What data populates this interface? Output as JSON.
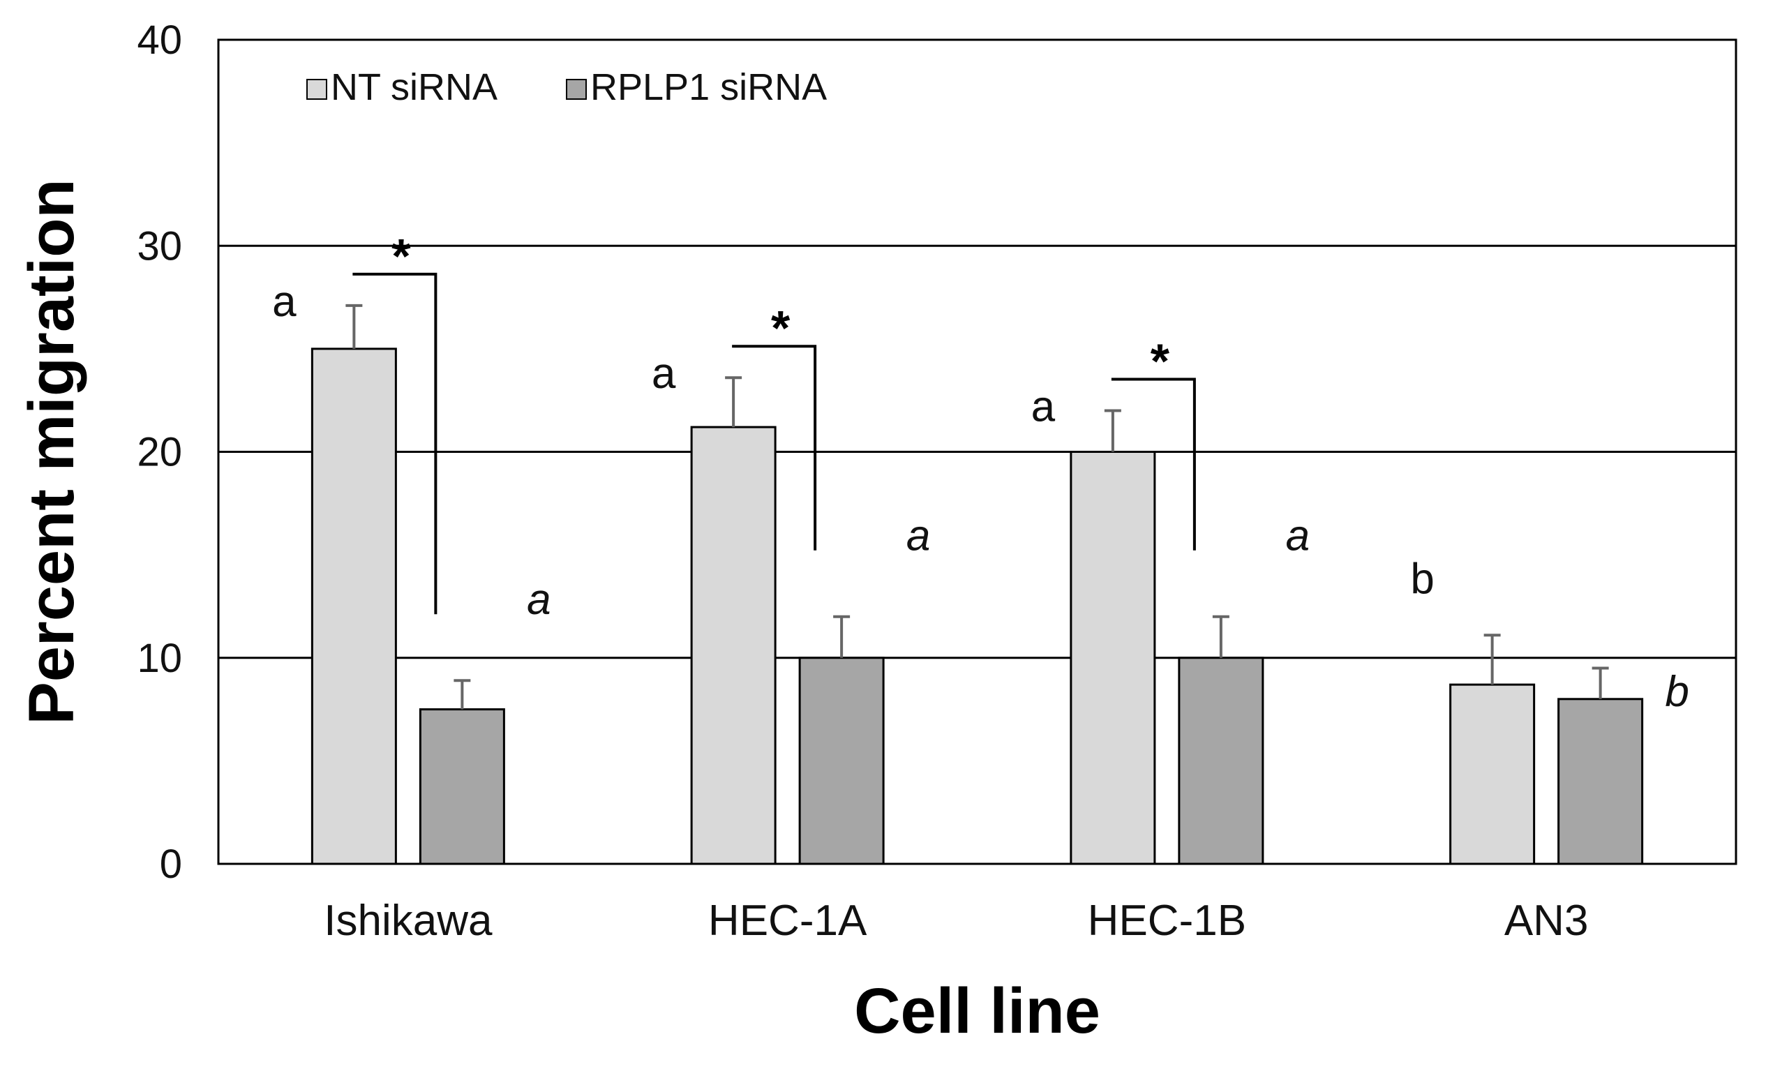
{
  "chart_data": {
    "type": "bar",
    "xlabel": "Cell line",
    "ylabel": "Percent migration",
    "ylim": [
      0,
      40
    ],
    "yticks": [
      0,
      10,
      20,
      30,
      40
    ],
    "grid": true,
    "legend_position": "top-left",
    "categories": [
      "Ishikawa",
      "HEC-1A",
      "HEC-1B",
      "AN3"
    ],
    "series": [
      {
        "name": "NT siRNA",
        "color": "#d9d9d9",
        "values": [
          25.0,
          21.2,
          20.0,
          8.7
        ],
        "errors": [
          2.1,
          2.4,
          2.0,
          2.4
        ],
        "letters": [
          "a",
          "a",
          "a",
          "b"
        ],
        "letter_style": "normal"
      },
      {
        "name": "RPLP1 siRNA",
        "color": "#a6a6a6",
        "values": [
          7.5,
          10.0,
          10.0,
          8.0
        ],
        "errors": [
          1.4,
          2.0,
          2.0,
          1.5
        ],
        "letters": [
          "a",
          "a",
          "a",
          "b"
        ],
        "letter_style": "italic"
      }
    ],
    "significance": [
      {
        "category": "Ishikawa",
        "label": "*"
      },
      {
        "category": "HEC-1A",
        "label": "*"
      },
      {
        "category": "HEC-1B",
        "label": "*"
      }
    ]
  }
}
